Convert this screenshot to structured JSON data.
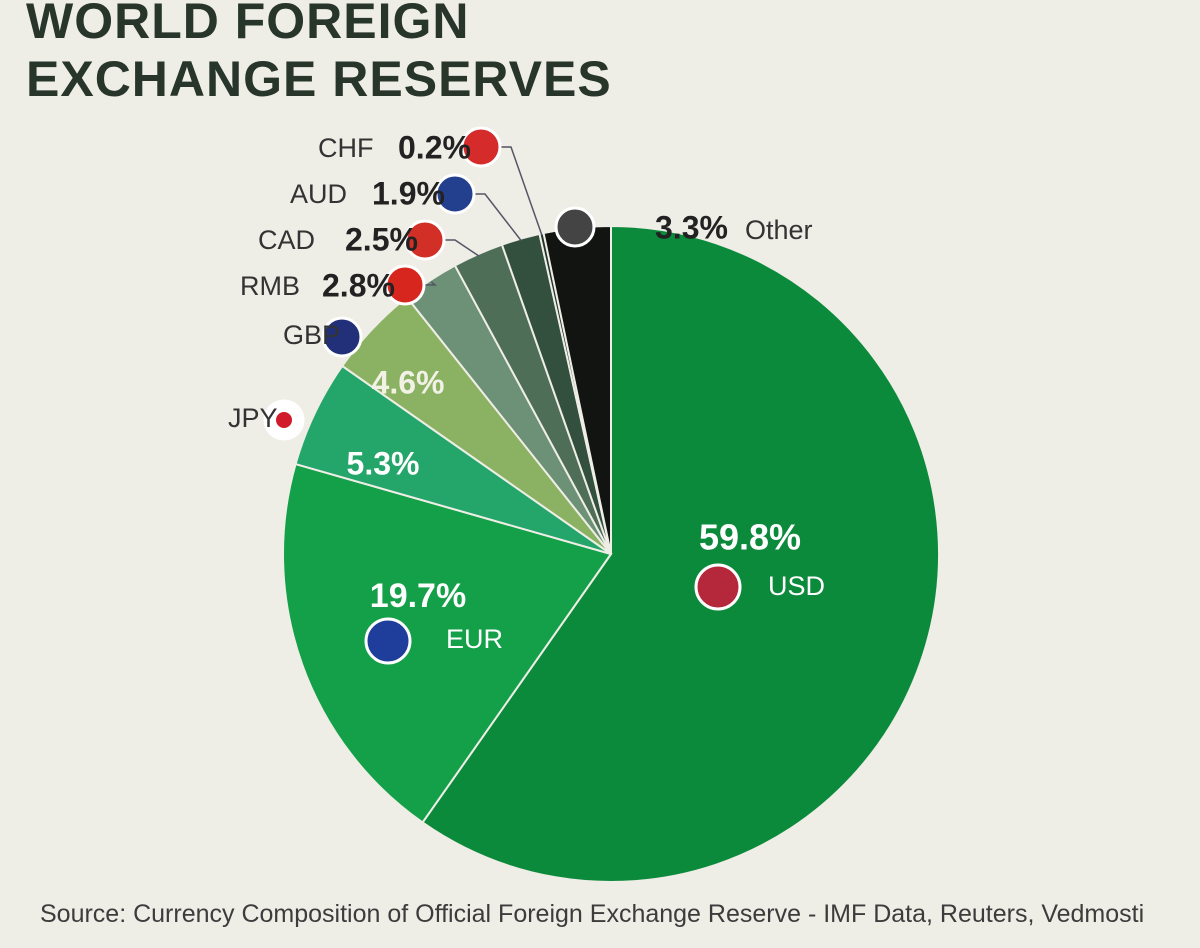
{
  "chart_data": {
    "type": "pie",
    "title": "WORLD FOREIGN EXCHANGE RESERVES",
    "categories": [
      "USD",
      "EUR",
      "JPY",
      "GBP",
      "RMB",
      "CAD",
      "AUD",
      "CHF",
      "Other"
    ],
    "values": [
      59.8,
      19.7,
      5.3,
      4.6,
      2.8,
      2.5,
      1.9,
      0.2,
      3.3
    ],
    "value_labels": [
      "59.8%",
      "19.7%",
      "5.3%",
      "4.6%",
      "2.8%",
      "2.5%",
      "1.9%",
      "0.2%",
      "3.3%"
    ],
    "colors": [
      "#0c8a3b",
      "#13a048",
      "#24a66a",
      "#8bb262",
      "#6c9176",
      "#4e6e58",
      "#33503f",
      "#22352b",
      "#111411"
    ],
    "source": "Source: Currency Composition of Official Foreign Exchange Reserve - IMF Data, Reuters, Vedmosti"
  }
}
